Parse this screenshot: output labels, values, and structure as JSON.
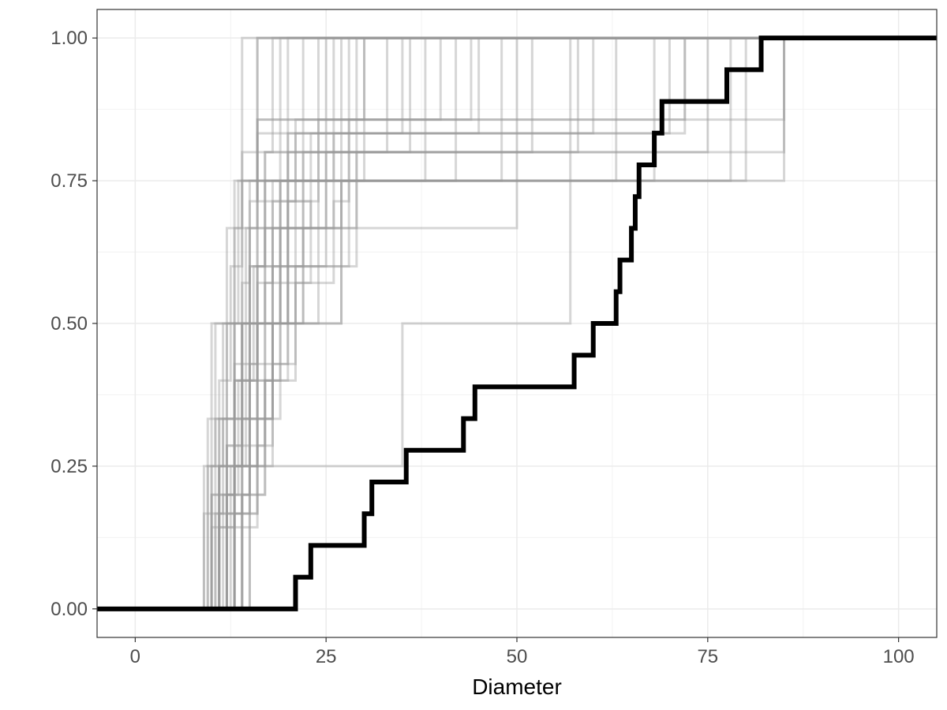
{
  "chart_data": {
    "type": "line",
    "step": true,
    "xlabel": "Diameter",
    "ylabel": "",
    "title": "",
    "xlim": [
      -5,
      105
    ],
    "ylim": [
      -0.05,
      1.05
    ],
    "x_ticks": [
      0,
      25,
      50,
      75,
      100
    ],
    "x_tick_labels": [
      "0",
      "25",
      "50",
      "75",
      "100"
    ],
    "y_ticks": [
      0,
      0.25,
      0.5,
      0.75,
      1
    ],
    "y_tick_labels": [
      "0.00",
      "0.25",
      "0.50",
      "0.75",
      "1.00"
    ],
    "grid": true,
    "legend": "none",
    "colors": {
      "highlight": "#000000",
      "background": "#999999",
      "panel_border": "#333333",
      "grid": "#ebebeb"
    },
    "series": [
      {
        "values": [
          [
            9.5,
            0.25
          ],
          [
            10.5,
            0.5
          ],
          [
            13,
            0.75
          ],
          [
            16,
            1
          ]
        ]
      },
      {
        "values": [
          [
            10,
            0.2
          ],
          [
            11,
            0.4
          ],
          [
            12.5,
            0.6
          ],
          [
            14,
            0.8
          ],
          [
            18,
            1
          ]
        ]
      },
      {
        "values": [
          [
            9,
            0.25
          ],
          [
            11.5,
            0.5
          ],
          [
            13.5,
            0.75
          ],
          [
            20,
            1
          ]
        ]
      },
      {
        "values": [
          [
            10.5,
            0.167
          ],
          [
            11.5,
            0.333
          ],
          [
            13,
            0.5
          ],
          [
            14.5,
            0.667
          ],
          [
            16,
            0.833
          ],
          [
            25,
            1
          ]
        ]
      },
      {
        "values": [
          [
            11,
            0.143
          ],
          [
            12,
            0.286
          ],
          [
            13,
            0.429
          ],
          [
            14,
            0.571
          ],
          [
            15,
            0.714
          ],
          [
            16,
            0.857
          ],
          [
            30,
            1
          ]
        ]
      },
      {
        "values": [
          [
            12,
            0.2
          ],
          [
            13,
            0.4
          ],
          [
            15,
            0.6
          ],
          [
            17,
            0.8
          ],
          [
            19,
            1
          ]
        ]
      },
      {
        "values": [
          [
            10,
            0.25
          ],
          [
            12,
            0.5
          ],
          [
            15,
            0.75
          ],
          [
            22,
            1
          ]
        ]
      },
      {
        "values": [
          [
            11,
            0.333
          ],
          [
            13,
            0.667
          ],
          [
            16,
            1
          ]
        ]
      },
      {
        "values": [
          [
            13,
            0.25
          ],
          [
            14,
            0.5
          ],
          [
            16,
            0.75
          ],
          [
            24,
            1
          ]
        ]
      },
      {
        "values": [
          [
            10,
            0.5
          ],
          [
            14,
            0.75
          ],
          [
            26,
            1
          ]
        ]
      },
      {
        "values": [
          [
            12,
            0.167
          ],
          [
            14,
            0.333
          ],
          [
            16,
            0.5
          ],
          [
            18,
            0.667
          ],
          [
            20,
            0.833
          ],
          [
            27,
            1
          ]
        ]
      },
      {
        "values": [
          [
            11,
            0.2
          ],
          [
            13,
            0.4
          ],
          [
            15,
            0.6
          ],
          [
            17,
            0.8
          ],
          [
            28,
            1
          ]
        ]
      },
      {
        "values": [
          [
            9.5,
            0.333
          ],
          [
            12,
            0.667
          ],
          [
            14,
            1
          ]
        ]
      },
      {
        "values": [
          [
            13,
            0.25
          ],
          [
            15,
            0.5
          ],
          [
            19,
            0.75
          ],
          [
            30,
            1
          ]
        ]
      },
      {
        "values": [
          [
            14,
            0.2
          ],
          [
            15,
            0.4
          ],
          [
            18,
            0.6
          ],
          [
            22,
            0.8
          ],
          [
            36,
            1
          ]
        ]
      },
      {
        "values": [
          [
            12,
            0.143
          ],
          [
            13,
            0.286
          ],
          [
            15,
            0.429
          ],
          [
            17,
            0.571
          ],
          [
            20,
            0.714
          ],
          [
            24,
            0.857
          ],
          [
            40,
            1
          ]
        ]
      },
      {
        "values": [
          [
            11,
            0.25
          ],
          [
            14,
            0.5
          ],
          [
            17,
            0.75
          ],
          [
            42,
            1
          ]
        ]
      },
      {
        "values": [
          [
            13,
            0.167
          ],
          [
            15,
            0.333
          ],
          [
            18,
            0.5
          ],
          [
            19,
            0.667
          ],
          [
            23,
            0.833
          ],
          [
            45,
            1
          ]
        ]
      },
      {
        "values": [
          [
            10.5,
            0.333
          ],
          [
            16,
            0.667
          ],
          [
            50,
            1
          ]
        ]
      },
      {
        "values": [
          [
            14,
            0.25
          ],
          [
            16,
            0.5
          ],
          [
            27,
            0.75
          ],
          [
            57,
            1
          ]
        ]
      },
      {
        "values": [
          [
            12,
            0.2
          ],
          [
            15,
            0.4
          ],
          [
            19,
            0.6
          ],
          [
            28,
            0.8
          ],
          [
            58,
            1
          ]
        ]
      },
      {
        "values": [
          [
            13,
            0.25
          ],
          [
            17,
            0.5
          ],
          [
            22,
            0.75
          ],
          [
            63,
            1
          ]
        ]
      },
      {
        "values": [
          [
            11,
            0.167
          ],
          [
            14,
            0.333
          ],
          [
            18,
            0.5
          ],
          [
            20,
            0.667
          ],
          [
            25,
            0.833
          ],
          [
            70,
            1
          ]
        ]
      },
      {
        "values": [
          [
            15,
            0.143
          ],
          [
            16,
            0.286
          ],
          [
            18,
            0.429
          ],
          [
            21,
            0.571
          ],
          [
            26,
            0.714
          ],
          [
            28,
            0.857
          ],
          [
            72,
            1
          ]
        ]
      },
      {
        "values": [
          [
            12,
            0.25
          ],
          [
            14,
            0.5
          ],
          [
            24,
            0.75
          ],
          [
            78,
            1
          ]
        ]
      },
      {
        "values": [
          [
            13,
            0.2
          ],
          [
            17,
            0.4
          ],
          [
            20,
            0.6
          ],
          [
            29,
            0.8
          ],
          [
            85,
            1
          ]
        ]
      },
      {
        "values": [
          [
            11,
            0.25
          ],
          [
            16,
            0.5
          ],
          [
            19,
            0.75
          ],
          [
            85,
            1
          ]
        ]
      },
      {
        "values": [
          [
            14,
            0.167
          ],
          [
            16,
            0.333
          ],
          [
            19,
            0.5
          ],
          [
            22,
            0.667
          ],
          [
            27,
            0.833
          ],
          [
            72,
            1
          ]
        ]
      },
      {
        "values": [
          [
            12,
            0.143
          ],
          [
            15,
            0.286
          ],
          [
            17,
            0.429
          ],
          [
            20,
            0.571
          ],
          [
            23,
            0.714
          ],
          [
            16,
            0.857
          ],
          [
            85,
            1
          ]
        ]
      },
      {
        "values": [
          [
            13,
            0.25
          ],
          [
            18,
            0.5
          ],
          [
            27,
            0.75
          ],
          [
            80,
            1
          ]
        ]
      },
      {
        "values": [
          [
            10,
            0.2
          ],
          [
            13,
            0.4
          ],
          [
            16,
            0.6
          ],
          [
            20,
            0.8
          ],
          [
            75,
            1
          ]
        ]
      },
      {
        "values": [
          [
            15,
            0.25
          ],
          [
            35,
            0.5
          ],
          [
            57,
            0.75
          ],
          [
            68,
            1
          ]
        ]
      },
      {
        "values": [
          [
            9,
            0.167
          ],
          [
            12,
            0.333
          ],
          [
            14,
            0.5
          ],
          [
            17,
            0.667
          ],
          [
            21,
            0.833
          ],
          [
            35,
            1
          ]
        ]
      },
      {
        "values": [
          [
            11.5,
            0.2
          ],
          [
            13.5,
            0.4
          ],
          [
            15.5,
            0.6
          ],
          [
            19,
            0.8
          ],
          [
            33,
            1
          ]
        ]
      },
      {
        "values": [
          [
            12.5,
            0.25
          ],
          [
            14.5,
            0.5
          ],
          [
            18,
            0.75
          ],
          [
            38,
            1
          ]
        ]
      },
      {
        "values": [
          [
            10,
            0.143
          ],
          [
            12,
            0.286
          ],
          [
            14,
            0.429
          ],
          [
            16,
            0.571
          ],
          [
            18,
            0.714
          ],
          [
            21,
            0.857
          ],
          [
            44,
            1
          ]
        ]
      },
      {
        "values": [
          [
            13,
            0.333
          ],
          [
            15,
            0.667
          ],
          [
            29,
            1
          ]
        ]
      },
      {
        "values": [
          [
            11,
            0.25
          ],
          [
            13,
            0.5
          ],
          [
            20,
            0.75
          ],
          [
            48,
            1
          ]
        ]
      },
      {
        "values": [
          [
            14,
            0.2
          ],
          [
            17,
            0.4
          ],
          [
            21,
            0.6
          ],
          [
            25,
            0.8
          ],
          [
            52,
            1
          ]
        ]
      },
      {
        "values": [
          [
            12,
            0.167
          ],
          [
            16,
            0.333
          ],
          [
            18,
            0.5
          ],
          [
            21,
            0.667
          ],
          [
            26,
            0.833
          ],
          [
            60,
            1
          ]
        ]
      },
      {
        "name": "highlight",
        "highlight": true,
        "values": [
          [
            21,
            0.0556
          ],
          [
            23,
            0.1111
          ],
          [
            30,
            0.1667
          ],
          [
            31,
            0.2222
          ],
          [
            35.5,
            0.2778
          ],
          [
            43,
            0.3333
          ],
          [
            44.5,
            0.3889
          ],
          [
            57.5,
            0.4444
          ],
          [
            60,
            0.5
          ],
          [
            63,
            0.5556
          ],
          [
            63.5,
            0.6111
          ],
          [
            65,
            0.6667
          ],
          [
            65.5,
            0.7222
          ],
          [
            66,
            0.7778
          ],
          [
            68,
            0.8333
          ],
          [
            69,
            0.8889
          ],
          [
            77.5,
            0.9444
          ],
          [
            82,
            1.0
          ]
        ]
      }
    ]
  }
}
